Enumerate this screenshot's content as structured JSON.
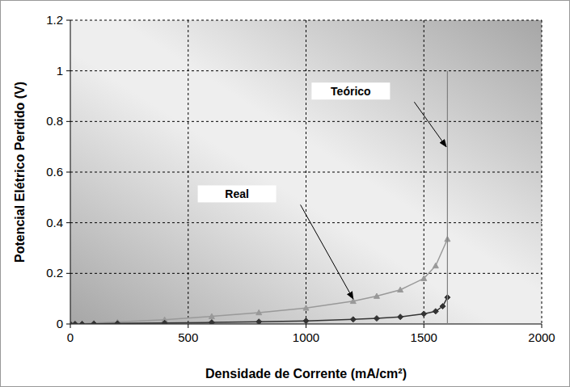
{
  "chart_data": {
    "type": "line",
    "x_label": "Densidade de Corrente (mA/cm²)",
    "y_label": "Potencial Elétrico Perdido (V)",
    "xlim": [
      0,
      2000
    ],
    "xticks": [
      0,
      500,
      1000,
      1500,
      2000
    ],
    "ylim": [
      0,
      1.2
    ],
    "yticks": [
      0,
      0.2,
      0.4,
      0.6,
      0.8,
      1,
      1.2
    ],
    "grid": true,
    "series": [
      {
        "color": "#999999",
        "marker": "triangle",
        "line_style": "solid",
        "x": [
          0,
          20,
          50,
          100,
          200,
          400,
          600,
          800,
          1000,
          1200,
          1300,
          1400,
          1500,
          1550,
          1600
        ],
        "values": [
          0,
          0.001,
          0.002,
          0.004,
          0.008,
          0.017,
          0.03,
          0.045,
          0.063,
          0.09,
          0.11,
          0.135,
          0.18,
          0.23,
          0.335
        ]
      },
      {
        "color": "#333333",
        "marker": "diamond",
        "line_style": "solid",
        "x": [
          0,
          20,
          50,
          100,
          200,
          400,
          600,
          800,
          1000,
          1200,
          1300,
          1400,
          1500,
          1550,
          1580,
          1600
        ],
        "values": [
          0,
          0,
          0,
          0.001,
          0.002,
          0.004,
          0.006,
          0.009,
          0.012,
          0.018,
          0.022,
          0.028,
          0.04,
          0.05,
          0.07,
          0.105
        ]
      },
      {
        "color": "#808080",
        "marker": "none",
        "line_style": "solid",
        "x": [
          1600,
          1600
        ],
        "values": [
          0,
          1
        ]
      }
    ],
    "annotations": [
      {
        "text": "Teórico",
        "x": 1190,
        "y": 0.92,
        "arrow_x": 1595,
        "arrow_y": 0.7
      },
      {
        "text": "Real",
        "x": 707,
        "y": 0.514,
        "arrow_x": 1200,
        "arrow_y": 0.099
      }
    ]
  }
}
